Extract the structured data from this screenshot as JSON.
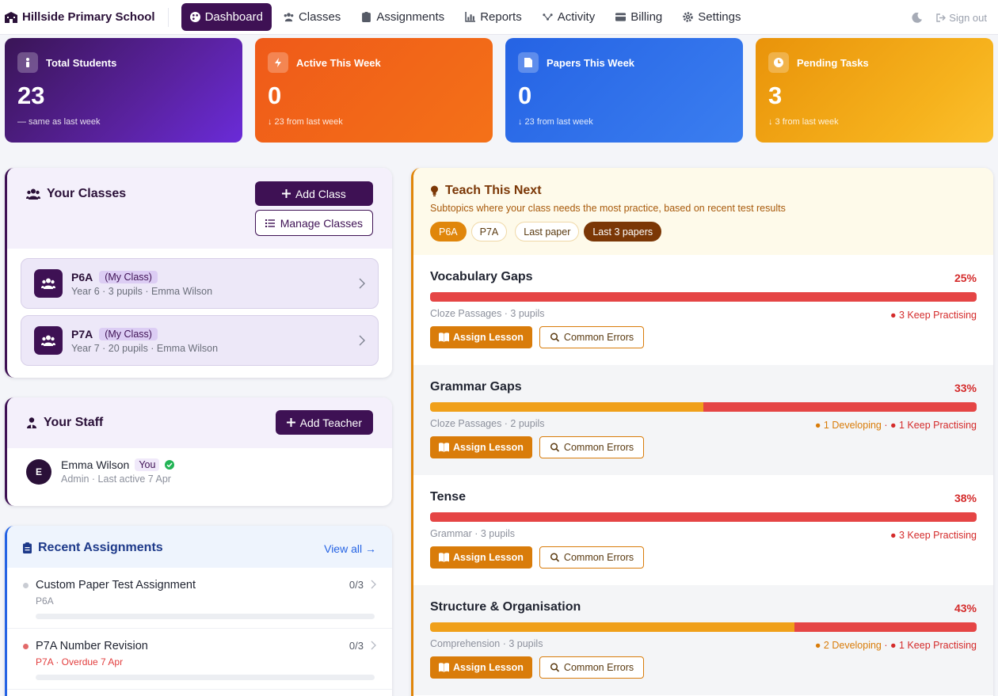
{
  "nav": {
    "brand": "Hillside Primary School",
    "items": [
      {
        "label": "Dashboard",
        "icon": "palette-icon",
        "active": true
      },
      {
        "label": "Classes",
        "icon": "users-icon"
      },
      {
        "label": "Assignments",
        "icon": "clipboard-icon"
      },
      {
        "label": "Reports",
        "icon": "chart-icon"
      },
      {
        "label": "Activity",
        "icon": "activity-icon"
      },
      {
        "label": "Billing",
        "icon": "card-icon"
      },
      {
        "label": "Settings",
        "icon": "gear-icon"
      }
    ],
    "signout": "Sign out"
  },
  "stats": [
    {
      "label": "Total Students",
      "value": "23",
      "sub": "— same as last week"
    },
    {
      "label": "Active This Week",
      "value": "0",
      "sub": "↓ 23 from last week"
    },
    {
      "label": "Papers This Week",
      "value": "0",
      "sub": "↓ 23 from last week"
    },
    {
      "label": "Pending Tasks",
      "value": "3",
      "sub": "↓ 3 from last week"
    }
  ],
  "classes": {
    "title": "Your Classes",
    "add_label": "Add Class",
    "manage_label": "Manage Classes",
    "items": [
      {
        "name": "P6A",
        "tag": "(My Class)",
        "meta": "Year 6 · 3 pupils · Emma Wilson"
      },
      {
        "name": "P7A",
        "tag": "(My Class)",
        "meta": "Year 7 · 20 pupils · Emma Wilson"
      }
    ]
  },
  "staff": {
    "title": "Your Staff",
    "add_label": "Add Teacher",
    "members": [
      {
        "initial": "E",
        "name": "Emma Wilson",
        "badge": "You",
        "meta": "Admin · Last active 7 Apr"
      }
    ]
  },
  "assignments": {
    "title": "Recent Assignments",
    "view_all": "View all →",
    "items": [
      {
        "title": "Custom Paper Test Assignment",
        "sub": "P6A",
        "count": "0/3",
        "dot_color": "#c9ccd3",
        "progress": 0
      },
      {
        "title": "P7A Number Revision",
        "sub": "P7A · Overdue 7 Apr",
        "count": "0/3",
        "dot_color": "#e26a6a",
        "progress": 0
      }
    ]
  },
  "teach": {
    "title": "Teach This Next",
    "subtitle": "Subtopics where your class needs the most practice, based on recent test results",
    "pills": [
      "P6A",
      "P7A",
      "Last paper",
      "Last 3 papers"
    ],
    "assign_label": "Assign Lesson",
    "errors_label": "Common Errors",
    "topics": [
      {
        "name": "Vocabulary Gaps",
        "pct": "25%",
        "meta": "Cloze Passages · 3 pupils",
        "developing": 0,
        "keep": 3,
        "legend_dev": "",
        "legend_keep": "● 3 Keep Practising"
      },
      {
        "name": "Grammar Gaps",
        "pct": "33%",
        "meta": "Cloze Passages · 2 pupils",
        "developing": 1,
        "keep": 1,
        "legend_dev": "● 1 Developing",
        "legend_keep": "● 1 Keep Practising"
      },
      {
        "name": "Tense",
        "pct": "38%",
        "meta": "Grammar · 3 pupils",
        "developing": 0,
        "keep": 3,
        "legend_dev": "",
        "legend_keep": "● 3 Keep Practising"
      },
      {
        "name": "Structure & Organisation",
        "pct": "43%",
        "meta": "Comprehension · 3 pupils",
        "developing": 2,
        "keep": 1,
        "legend_dev": "● 2 Developing",
        "legend_keep": "● 1 Keep Practising"
      }
    ]
  },
  "colors": {
    "primary": "#3e1154",
    "accent_orange": "#d97c0a",
    "keep_practising": "#e54545",
    "developing": "#f0a01a",
    "blue": "#2563e4"
  }
}
